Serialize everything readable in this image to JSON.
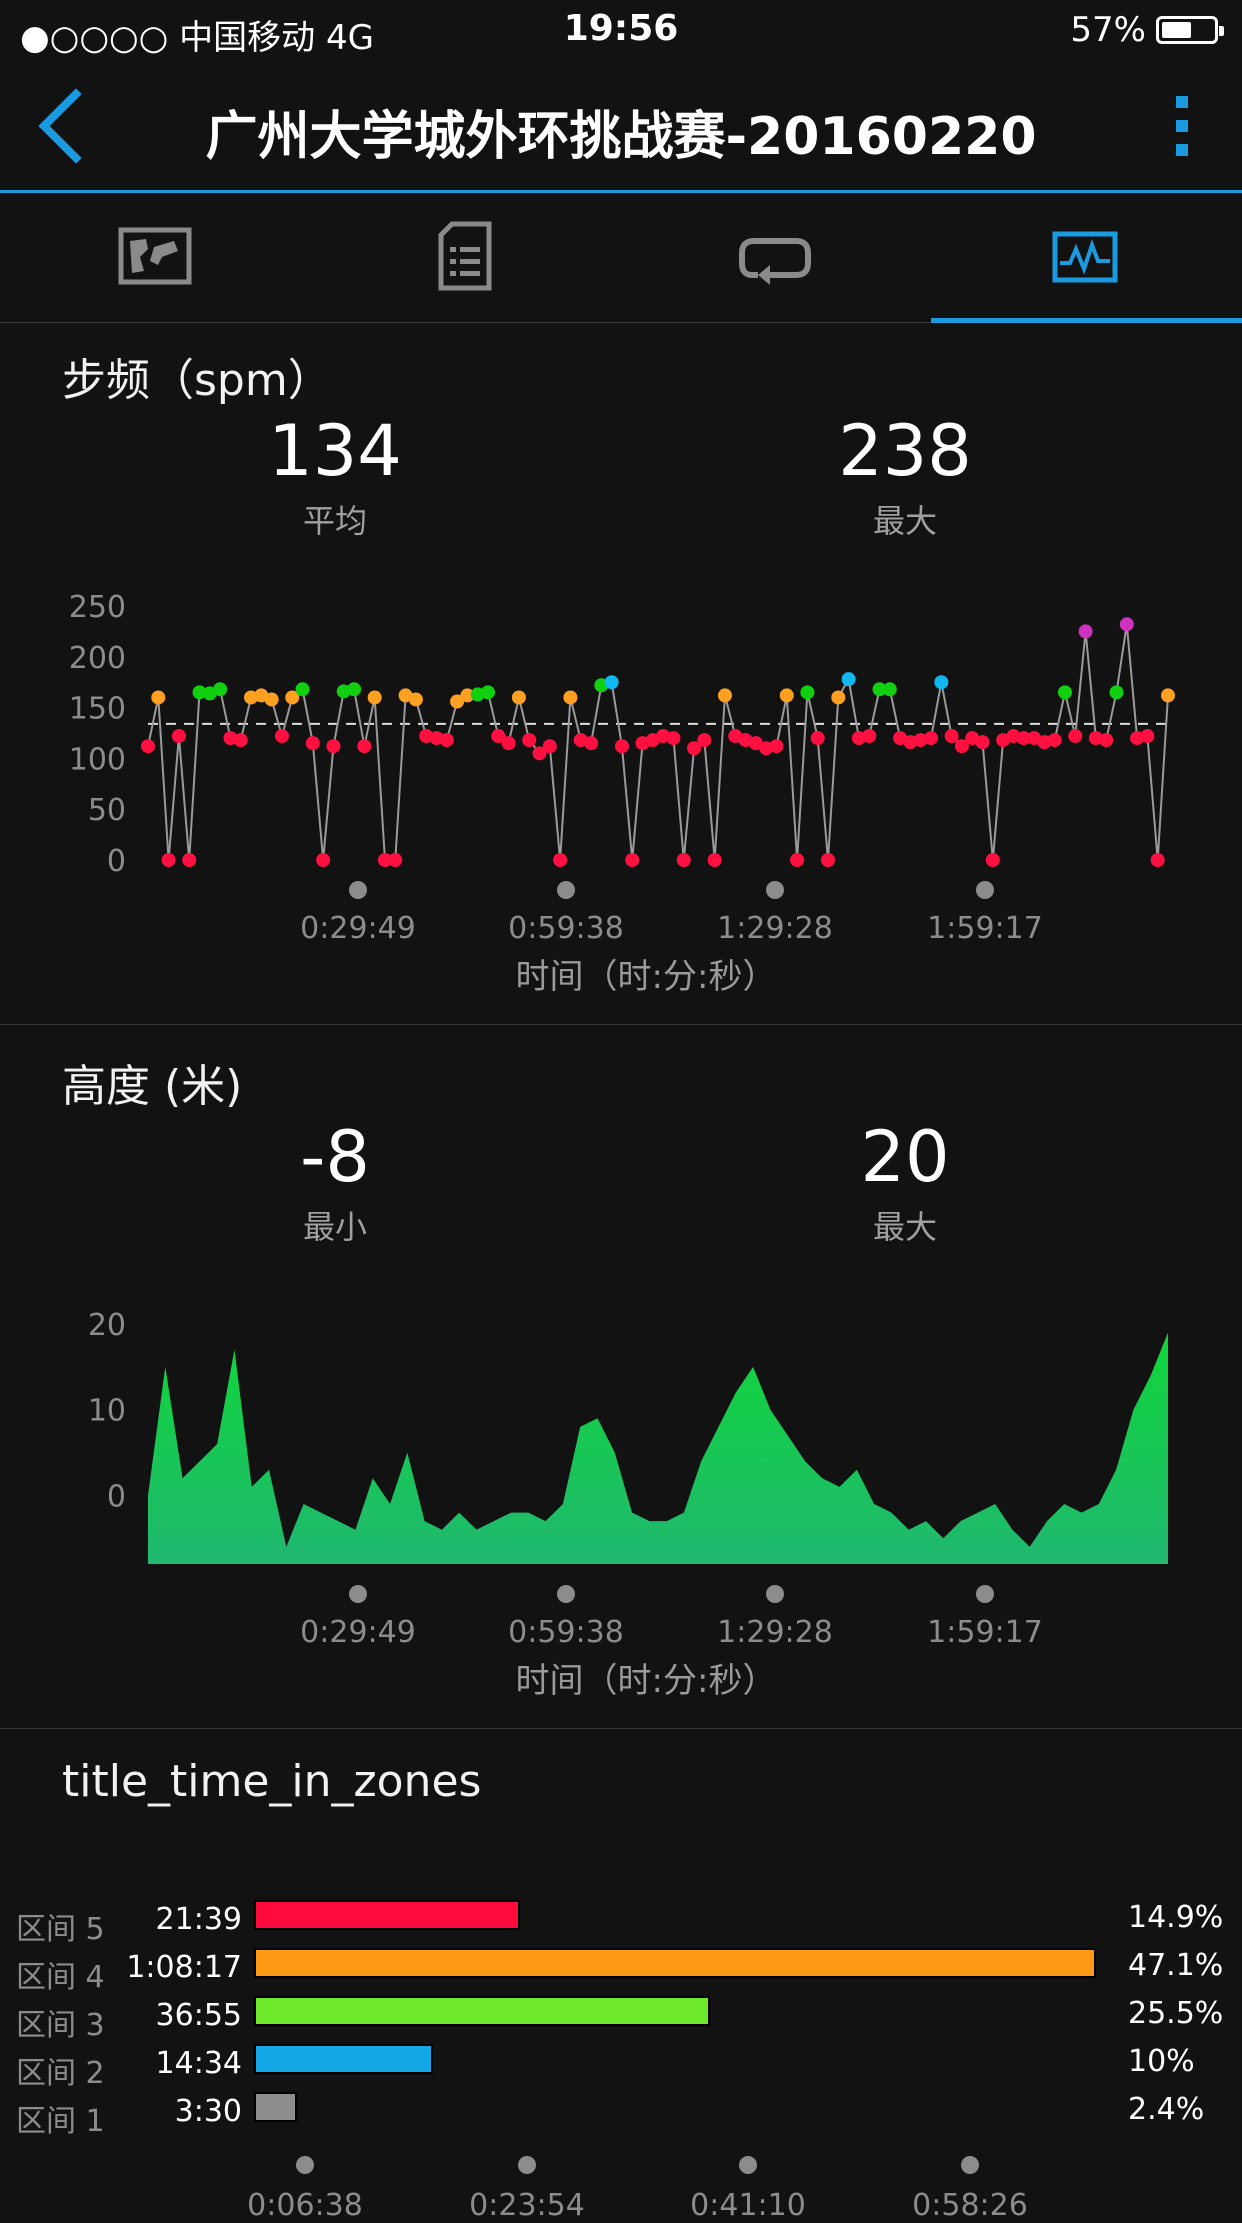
{
  "status_bar": {
    "carrier": "●○○○○ 中国移动   4G",
    "time": "19:56",
    "battery_pct_text": "57%",
    "battery_fraction": 0.57
  },
  "header": {
    "title": "广州大学城外环挑战赛-20160220",
    "back_icon": "chevron-left-icon",
    "menu_icon": "more-vertical-icon"
  },
  "tabs": [
    {
      "icon": "map-icon",
      "active": false
    },
    {
      "icon": "list-document-icon",
      "active": false
    },
    {
      "icon": "laps-loop-icon",
      "active": false
    },
    {
      "icon": "chart-pulse-icon",
      "active": true
    }
  ],
  "colors": {
    "accent": "#1a9ae0",
    "zone5": "#ff0a3c",
    "zone4": "#ff9a14",
    "zone3": "#6ee82a",
    "zone2": "#14a8e8",
    "zone1": "#8c8c8c",
    "cad_red": "#ff1040",
    "cad_orange": "#ffa020",
    "cad_green": "#10d010",
    "cad_blue": "#10b8f0",
    "cad_purple": "#d030c0",
    "elev_green": "#20d040"
  },
  "cadence": {
    "title": "步频（spm）",
    "avg_value": "134",
    "avg_label": "平均",
    "max_value": "238",
    "max_label": "最大",
    "xlabel": "时间（时:分:秒）",
    "y_ticks": [
      "250",
      "200",
      "150",
      "100",
      "50",
      "0"
    ],
    "x_ticks": [
      "0:29:49",
      "0:59:38",
      "1:29:28",
      "1:59:17"
    ]
  },
  "elevation": {
    "title": "高度 (米)",
    "min_value": "-8",
    "min_label": "最小",
    "max_value": "20",
    "max_label": "最大",
    "xlabel": "时间（时:分:秒）",
    "y_ticks": [
      "20",
      "10",
      "0"
    ],
    "x_ticks": [
      "0:29:49",
      "0:59:38",
      "1:29:28",
      "1:59:17"
    ]
  },
  "zones": {
    "title": "title_time_in_zones",
    "items": [
      {
        "name": "区间 5",
        "time": "21:39",
        "pct": "14.9%",
        "fraction": 0.149
      },
      {
        "name": "区间 4",
        "time": "1:08:17",
        "pct": "47.1%",
        "fraction": 0.471
      },
      {
        "name": "区间 3",
        "time": "36:55",
        "pct": "25.5%",
        "fraction": 0.255
      },
      {
        "name": "区间 2",
        "time": "14:34",
        "pct": "10%",
        "fraction": 0.1
      },
      {
        "name": "区间 1",
        "time": "3:30",
        "pct": "2.4%",
        "fraction": 0.024
      }
    ],
    "x_ticks": [
      "0:06:38",
      "0:23:54",
      "0:41:10",
      "0:58:26"
    ]
  },
  "chart_data": [
    {
      "type": "scatter",
      "title": "步频（spm）",
      "xlabel": "时间（时:分:秒）",
      "ylabel": "",
      "ylim": [
        0,
        250
      ],
      "avg_line": 134,
      "x": [
        0,
        1,
        2,
        3,
        4,
        5,
        6,
        7,
        8,
        9,
        10,
        11,
        12,
        13,
        14,
        15,
        16,
        17,
        18,
        19,
        20,
        21,
        22,
        23,
        24,
        25,
        26,
        27,
        28,
        29,
        30,
        31,
        32,
        33,
        34,
        35,
        36,
        37,
        38,
        39,
        40,
        41,
        42,
        43,
        44,
        45,
        46,
        47,
        48,
        49,
        50,
        51,
        52,
        53,
        54,
        55,
        56,
        57,
        58,
        59,
        60,
        61,
        62,
        63,
        64,
        65,
        66,
        67,
        68,
        69,
        70,
        71,
        72,
        73,
        74,
        75,
        76,
        77,
        78,
        79,
        80,
        81,
        82,
        83,
        84,
        85,
        86,
        87,
        88,
        89,
        90,
        91,
        92,
        93,
        94,
        95,
        96,
        97,
        98,
        99
      ],
      "values": [
        112,
        160,
        0,
        122,
        0,
        165,
        164,
        168,
        120,
        118,
        160,
        162,
        158,
        122,
        160,
        168,
        115,
        0,
        112,
        166,
        168,
        112,
        160,
        0,
        0,
        162,
        158,
        122,
        120,
        118,
        156,
        162,
        163,
        165,
        122,
        115,
        160,
        118,
        105,
        112,
        0,
        160,
        118,
        115,
        172,
        175,
        112,
        0,
        115,
        118,
        122,
        120,
        0,
        110,
        118,
        0,
        162,
        122,
        118,
        115,
        110,
        112,
        162,
        0,
        165,
        120,
        0,
        160,
        178,
        120,
        122,
        168,
        168,
        120,
        116,
        118,
        120,
        175,
        122,
        112,
        120,
        116,
        0,
        118,
        122,
        120,
        120,
        116,
        118,
        165,
        122,
        225,
        120,
        118,
        165,
        232,
        120,
        122,
        0,
        162
      ],
      "series_colors_note": "points colored by zone: red/orange/green/blue/purple"
    },
    {
      "type": "area",
      "title": "高度 (米)",
      "xlabel": "时间（时:分:秒）",
      "ylabel": "",
      "ylim": [
        -8,
        20
      ],
      "x": [
        0,
        1,
        2,
        3,
        4,
        5,
        6,
        7,
        8,
        9,
        10,
        11,
        12,
        13,
        14,
        15,
        16,
        17,
        18,
        19,
        20,
        21,
        22,
        23,
        24,
        25,
        26,
        27,
        28,
        29,
        30,
        31,
        32,
        33,
        34,
        35,
        36,
        37,
        38,
        39,
        40,
        41,
        42,
        43,
        44,
        45,
        46,
        47,
        48,
        49,
        50,
        51,
        52,
        53,
        54,
        55,
        56,
        57,
        58,
        59
      ],
      "values": [
        0,
        15,
        2,
        4,
        6,
        17,
        1,
        3,
        -6,
        -1,
        -2,
        -3,
        -4,
        2,
        -1,
        5,
        -3,
        -4,
        -2,
        -4,
        -3,
        -2,
        -2,
        -3,
        -1,
        8,
        9,
        5,
        -2,
        -3,
        -3,
        -2,
        4,
        8,
        12,
        15,
        10,
        7,
        4,
        2,
        1,
        3,
        -1,
        -2,
        -4,
        -3,
        -5,
        -3,
        -2,
        -1,
        -4,
        -6,
        -3,
        -1,
        -2,
        -1,
        3,
        10,
        14,
        19
      ]
    },
    {
      "type": "bar",
      "title": "title_time_in_zones",
      "categories": [
        "区间 5",
        "区间 4",
        "区间 3",
        "区间 2",
        "区间 1"
      ],
      "values": [
        21.65,
        68.28,
        36.92,
        14.57,
        3.5
      ],
      "value_labels": [
        "21:39",
        "1:08:17",
        "36:55",
        "14:34",
        "3:30"
      ],
      "percent": [
        14.9,
        47.1,
        25.5,
        10,
        2.4
      ],
      "orientation": "horizontal"
    }
  ]
}
